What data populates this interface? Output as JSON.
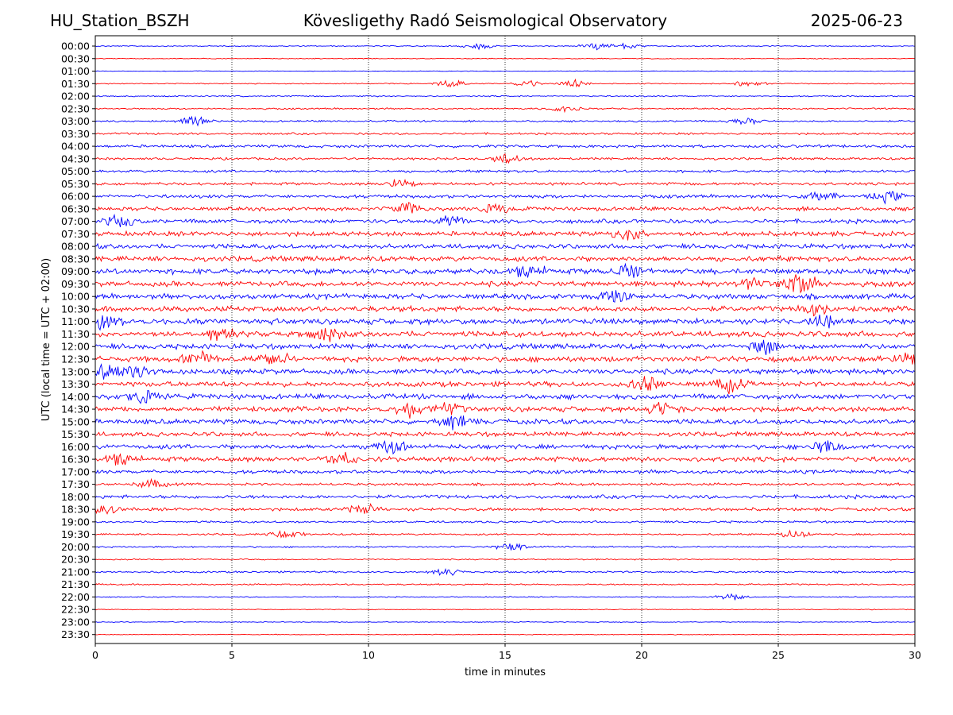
{
  "header": {
    "station": "HU_Station_BSZH",
    "title": "Kövesligethy Radó Seismological Observatory",
    "date": "2025-06-23"
  },
  "colors": {
    "even_rows": "#0000ff",
    "odd_rows": "#ff0000",
    "grid": "#000000"
  },
  "chart_data": {
    "type": "line",
    "title": "Kövesligethy Radó Seismological Observatory",
    "xlabel": "time in minutes",
    "ylabel": "UTC (local time = UTC + 02:00)",
    "xlim": [
      0,
      30
    ],
    "xticks": [
      0,
      5,
      10,
      15,
      20,
      25,
      30
    ],
    "grid": "vertical dotted lines at x ticks",
    "row_labels": [
      "00:00",
      "00:30",
      "01:00",
      "01:30",
      "02:00",
      "02:30",
      "03:00",
      "03:30",
      "04:00",
      "04:30",
      "05:00",
      "05:30",
      "06:00",
      "06:30",
      "07:00",
      "07:30",
      "08:00",
      "08:30",
      "09:00",
      "09:30",
      "10:00",
      "10:30",
      "11:00",
      "11:30",
      "12:00",
      "12:30",
      "13:00",
      "13:30",
      "14:00",
      "14:30",
      "15:00",
      "15:30",
      "16:00",
      "16:30",
      "17:00",
      "17:30",
      "18:00",
      "18:30",
      "19:00",
      "19:30",
      "20:00",
      "20:30",
      "21:00",
      "21:30",
      "22:00",
      "22:30",
      "23:00",
      "23:30"
    ],
    "row_colors": "alternating blue (even) / red (odd)",
    "row_amplitude": [
      0.2,
      0.15,
      0.12,
      0.2,
      0.25,
      0.3,
      0.35,
      0.4,
      0.55,
      0.45,
      0.5,
      0.55,
      0.65,
      0.75,
      0.8,
      0.9,
      0.9,
      1.0,
      1.05,
      1.0,
      1.0,
      1.05,
      1.1,
      1.1,
      1.0,
      1.05,
      1.0,
      1.0,
      1.0,
      1.0,
      0.95,
      0.85,
      0.9,
      0.95,
      0.7,
      0.5,
      0.7,
      0.6,
      0.4,
      0.35,
      0.3,
      0.25,
      0.35,
      0.3,
      0.2,
      0.15,
      0.15,
      0.15
    ],
    "bursts": [
      {
        "row": 0,
        "x": [
          14,
          18.3,
          19.5
        ]
      },
      {
        "row": 3,
        "x": [
          13,
          15.8,
          17.5,
          24
        ]
      },
      {
        "row": 5,
        "x": [
          17.2
        ]
      },
      {
        "row": 6,
        "x": [
          3.6,
          23.8
        ]
      },
      {
        "row": 9,
        "x": [
          15
        ]
      },
      {
        "row": 11,
        "x": [
          11.1
        ]
      },
      {
        "row": 12,
        "x": [
          26.5,
          29
        ]
      },
      {
        "row": 13,
        "x": [
          11.5,
          14.7
        ]
      },
      {
        "row": 14,
        "x": [
          0.9,
          13
        ]
      },
      {
        "row": 15,
        "x": [
          19.5
        ]
      },
      {
        "row": 18,
        "x": [
          15.9,
          19.5
        ]
      },
      {
        "row": 19,
        "x": [
          24,
          25.6,
          26.1
        ]
      },
      {
        "row": 20,
        "x": [
          19
        ]
      },
      {
        "row": 21,
        "x": [
          26.3
        ]
      },
      {
        "row": 22,
        "x": [
          0.3,
          26.8
        ]
      },
      {
        "row": 23,
        "x": [
          4.5,
          8.5
        ]
      },
      {
        "row": 24,
        "x": [
          24.6
        ]
      },
      {
        "row": 25,
        "x": [
          3.8,
          6.5,
          29.8
        ]
      },
      {
        "row": 26,
        "x": [
          0.4,
          1.5
        ]
      },
      {
        "row": 27,
        "x": [
          20.2,
          23.2
        ]
      },
      {
        "row": 28,
        "x": [
          1.8
        ]
      },
      {
        "row": 29,
        "x": [
          11.5,
          13,
          20.8
        ]
      },
      {
        "row": 30,
        "x": [
          13.2
        ]
      },
      {
        "row": 32,
        "x": [
          10.8,
          26.8
        ]
      },
      {
        "row": 33,
        "x": [
          1,
          9
        ]
      },
      {
        "row": 35,
        "x": [
          2
        ]
      },
      {
        "row": 37,
        "x": [
          0.3,
          9.8
        ]
      },
      {
        "row": 39,
        "x": [
          7,
          25.6
        ]
      },
      {
        "row": 40,
        "x": [
          15.2
        ]
      },
      {
        "row": 42,
        "x": [
          12.8
        ]
      },
      {
        "row": 44,
        "x": [
          23.3
        ]
      }
    ]
  }
}
